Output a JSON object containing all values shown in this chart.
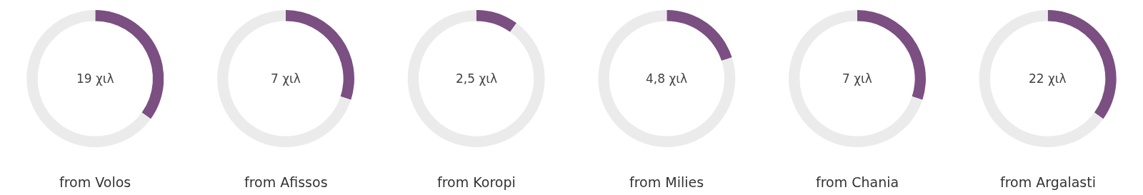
{
  "chart_data": [
    {
      "type": "donut",
      "categories": [
        null,
        null
      ],
      "values": [
        35,
        65
      ],
      "colors": [
        "#7b4f82",
        "#ebebeb"
      ],
      "annotations": [
        "19 χιλ"
      ],
      "xlabel": "from Volos"
    },
    {
      "type": "donut",
      "categories": [
        null,
        null
      ],
      "values": [
        30,
        70
      ],
      "colors": [
        "#7b4f82",
        "#ebebeb"
      ],
      "annotations": [
        "7 χιλ"
      ],
      "xlabel": "from Afissos"
    },
    {
      "type": "donut",
      "categories": [
        null,
        null
      ],
      "values": [
        10,
        90
      ],
      "colors": [
        "#7b4f82",
        "#ebebeb"
      ],
      "annotations": [
        "2,5 χιλ"
      ],
      "xlabel": "from Koropi"
    },
    {
      "type": "donut",
      "categories": [
        null,
        null
      ],
      "values": [
        20,
        80
      ],
      "colors": [
        "#7b4f82",
        "#ebebeb"
      ],
      "annotations": [
        "4,8 χιλ"
      ],
      "xlabel": "from Milies"
    },
    {
      "type": "donut",
      "categories": [
        null,
        null
      ],
      "values": [
        30,
        70
      ],
      "colors": [
        "#7b4f82",
        "#ebebeb"
      ],
      "annotations": [
        "7 χιλ"
      ],
      "xlabel": "from Chania"
    },
    {
      "type": "donut",
      "categories": [
        null,
        null
      ],
      "values": [
        35,
        65
      ],
      "colors": [
        "#7b4f82",
        "#ebebeb"
      ],
      "annotations": [
        "22 χιλ"
      ],
      "xlabel": "from Argalasti"
    }
  ]
}
